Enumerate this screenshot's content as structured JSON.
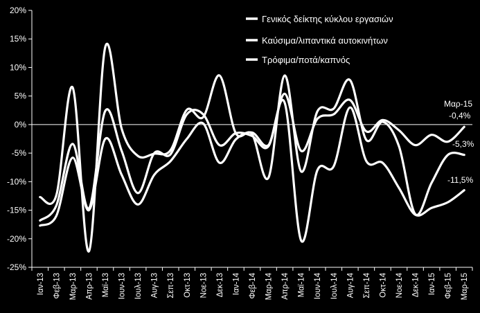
{
  "chart_data": {
    "type": "line",
    "title": "",
    "xlabel": "",
    "ylabel": "",
    "ylim": [
      -25,
      20
    ],
    "yticks": [
      20,
      15,
      10,
      5,
      0,
      -5,
      -10,
      -15,
      -20,
      -25
    ],
    "ytick_labels": [
      "20%",
      "15%",
      "10%",
      "5%",
      "0%",
      "-5%",
      "-10%",
      "-15%",
      "-20%",
      "-25%"
    ],
    "grid": false,
    "legend_position": "top-right",
    "background": "#000000",
    "line_color": "#ffffff",
    "x": [
      "Ιαν-13",
      "Φεβ-13",
      "Μαρ-13",
      "Απρ-13",
      "Μαϊ-13",
      "Ιουν-13",
      "Ιουλ-13",
      "Αυγ-13",
      "Σεπ-13",
      "Οκτ-13",
      "Νοε-13",
      "Δεκ-13",
      "Ιαν-14",
      "Φεβ-14",
      "Μαρ-14",
      "Απρ-14",
      "Μαϊ-14",
      "Ιουν-14",
      "Ιουλ-14",
      "Αυγ-14",
      "Σεπ-14",
      "Οκτ-14",
      "Νοε-14",
      "Δεκ-14",
      "Ιαν-15",
      "Φεβ-15",
      "Μαρ-15"
    ],
    "series": [
      {
        "name": "Γενικός δείκτης κύκλου εργασιών",
        "values": [
          -16.8,
          -14.2,
          -3.4,
          -14.7,
          2.4,
          -4.6,
          -12.0,
          -5.0,
          -5.2,
          1.8,
          1.8,
          -3.6,
          -1.5,
          -2.0,
          -3.8,
          5.4,
          -4.6,
          1.0,
          1.8,
          4.3,
          -1.2,
          0.8,
          -1.0,
          -3.6,
          -1.8,
          -3.0,
          -0.4
        ]
      },
      {
        "name": "Καύσιμα/λιπαντικά αυτοκινήτων",
        "values": [
          -17.7,
          -16.0,
          -5.8,
          -15.0,
          -2.5,
          -8.8,
          -14.0,
          -8.8,
          -6.4,
          -2.5,
          0.2,
          -6.7,
          -2.6,
          -1.4,
          -3.6,
          3.8,
          -20.3,
          -8.0,
          -7.3,
          3.0,
          -6.4,
          -6.7,
          -11.1,
          -15.8,
          -14.6,
          -13.6,
          -11.5
        ]
      },
      {
        "name": "Τρόφιμα/ποτά/καπνός",
        "values": [
          -12.7,
          -12.4,
          6.5,
          -22.2,
          13.6,
          -0.7,
          -5.5,
          -5.1,
          -4.5,
          2.6,
          1.3,
          8.6,
          -1.5,
          -1.7,
          -9.3,
          8.6,
          -8.2,
          2.3,
          2.8,
          7.8,
          -2.7,
          0.5,
          -3.8,
          -15.7,
          -10.2,
          -5.3,
          -5.3
        ]
      }
    ],
    "annotations": {
      "month": "Μαρ-15",
      "series1_last": "-0,4%",
      "series3_last": "-5,3%",
      "series2_last": "-11,5%"
    }
  }
}
